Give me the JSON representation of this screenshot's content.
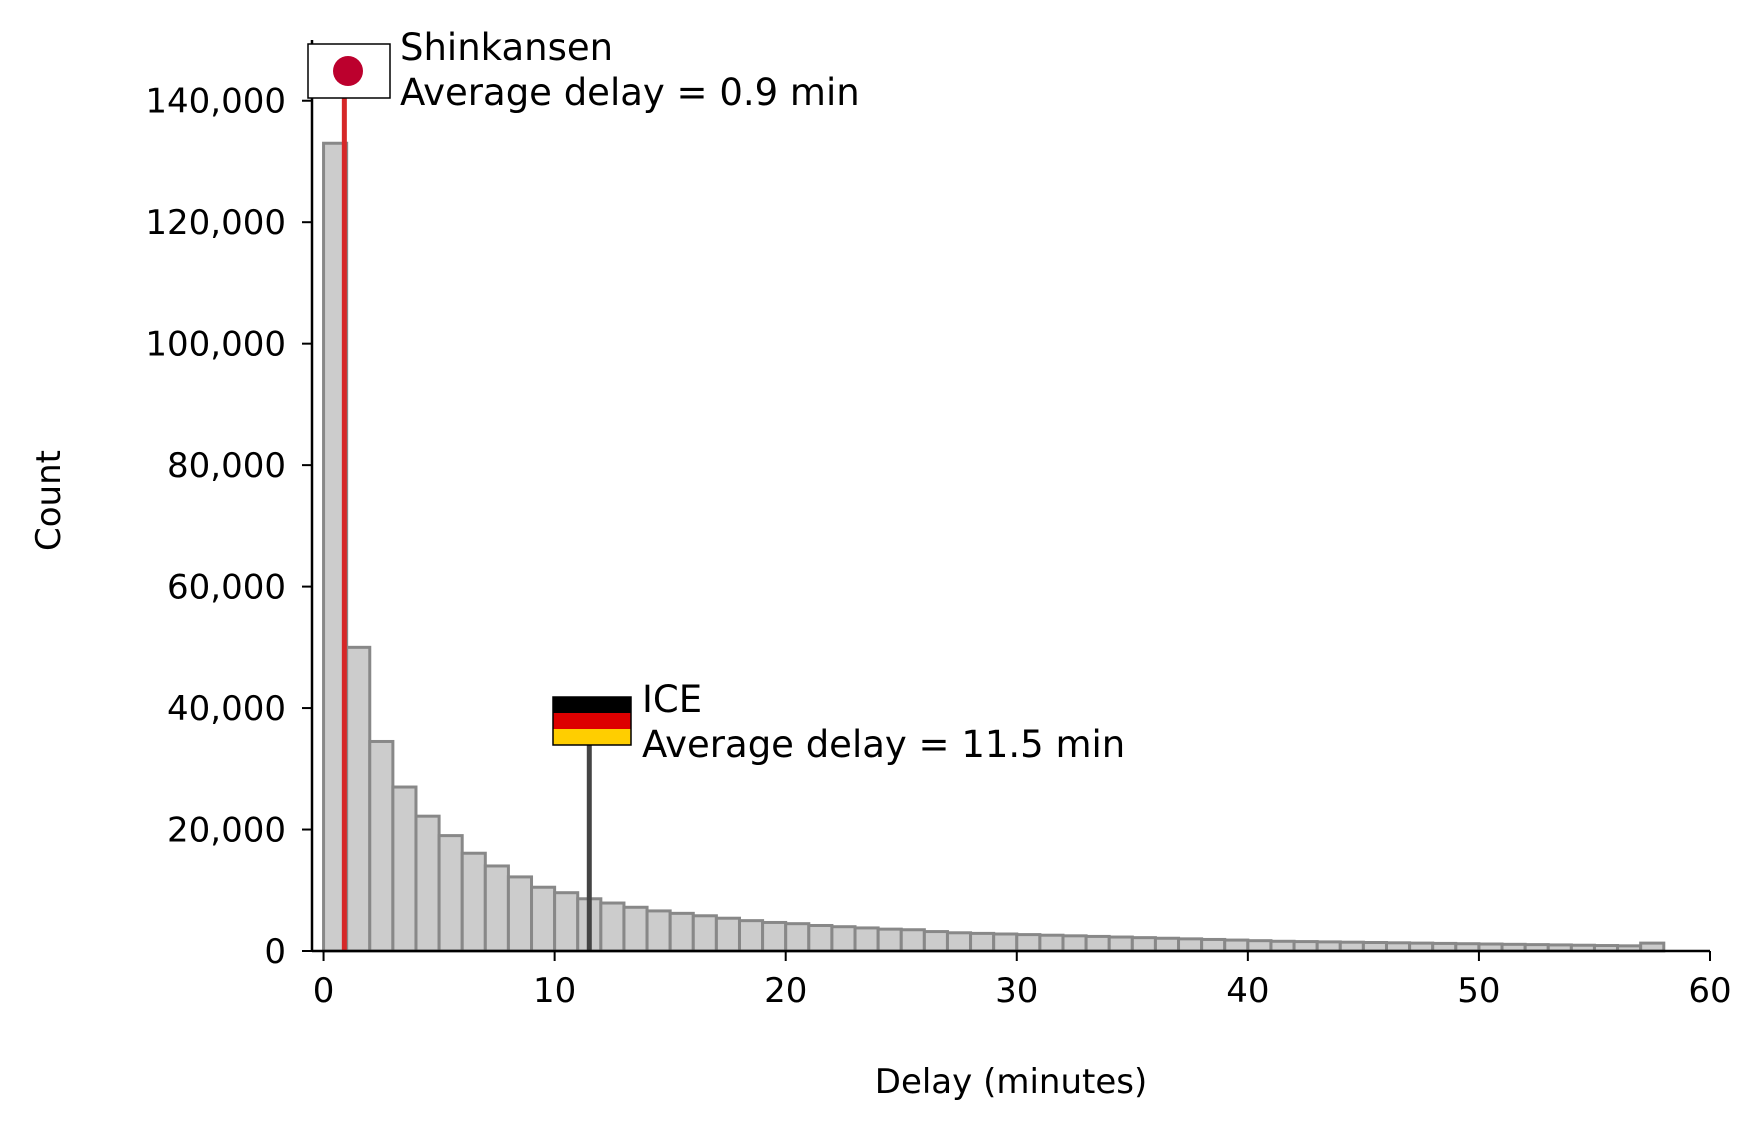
{
  "chart_data": {
    "type": "bar",
    "title": "",
    "xlabel": "Delay (minutes)",
    "ylabel": "Count",
    "xlim": [
      -0.5,
      60
    ],
    "ylim": [
      0,
      150000
    ],
    "grid": false,
    "bin_width": 1,
    "bins_start": [
      0,
      1,
      2,
      3,
      4,
      5,
      6,
      7,
      8,
      9,
      10,
      11,
      12,
      13,
      14,
      15,
      16,
      17,
      18,
      19,
      20,
      21,
      22,
      23,
      24,
      25,
      26,
      27,
      28,
      29,
      30,
      31,
      32,
      33,
      34,
      35,
      36,
      37,
      38,
      39,
      40,
      41,
      42,
      43,
      44,
      45,
      46,
      47,
      48,
      49,
      50,
      51,
      52,
      53,
      54,
      55,
      56,
      57
    ],
    "values": [
      133000,
      50000,
      34500,
      27000,
      22200,
      19000,
      16100,
      14000,
      12200,
      10500,
      9600,
      8600,
      7900,
      7200,
      6600,
      6200,
      5800,
      5400,
      5000,
      4700,
      4500,
      4200,
      4000,
      3800,
      3600,
      3500,
      3200,
      3000,
      2900,
      2800,
      2700,
      2600,
      2500,
      2400,
      2300,
      2200,
      2100,
      2000,
      1900,
      1800,
      1700,
      1600,
      1550,
      1500,
      1450,
      1400,
      1350,
      1300,
      1250,
      1200,
      1150,
      1100,
      1050,
      1000,
      950,
      900,
      850,
      1300
    ],
    "x_ticks": [
      0,
      10,
      20,
      30,
      40,
      50,
      60
    ],
    "x_tick_labels": [
      "0",
      "10",
      "20",
      "30",
      "40",
      "50",
      "60"
    ],
    "y_ticks": [
      0,
      20000,
      40000,
      60000,
      80000,
      100000,
      120000,
      140000
    ],
    "y_tick_labels": [
      "0",
      "20,000",
      "40,000",
      "60,000",
      "80,000",
      "100,000",
      "120,000",
      "140,000"
    ],
    "colors": {
      "bar_fill": "#cccccc",
      "bar_stroke": "#888888",
      "shinkansen_line": "#d62728",
      "ice_line": "#444444",
      "japan_red": "#bc002d",
      "germany_black": "#000000",
      "germany_red": "#dd0000",
      "germany_gold": "#ffce00"
    },
    "annotations": [
      {
        "id": "shinkansen",
        "x": 0.9,
        "y_top": 140000,
        "flag": "japan-flag-icon",
        "line1": "Shinkansen",
        "line2": "Average delay = 0.9 min"
      },
      {
        "id": "ice",
        "x": 11.5,
        "y_top": 34000,
        "flag": "germany-flag-icon",
        "line1": "ICE",
        "line2": "Average delay = 11.5 min"
      }
    ]
  }
}
